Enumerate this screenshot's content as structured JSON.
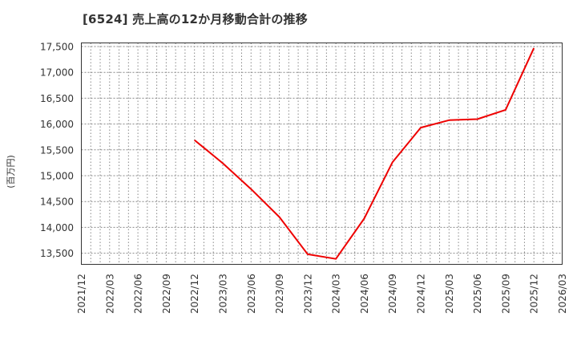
{
  "header": {
    "title": "[6524]  売上高の12か月移動合計の推移"
  },
  "axes": {
    "ylabel": "(百万円)"
  },
  "colors": {
    "line": "#ee0000",
    "grid": "#888888",
    "axis": "#333333",
    "background": "#ffffff"
  },
  "chart_data": {
    "type": "line",
    "title": "[6524]  売上高の12か月移動合計の推移",
    "xlabel": "",
    "ylabel": "(百万円)",
    "ylim": [
      13300,
      17580
    ],
    "grid": true,
    "legend": null,
    "y_ticks": [
      "13,500",
      "14,000",
      "14,500",
      "15,000",
      "15,500",
      "16,000",
      "16,500",
      "17,000",
      "17,500"
    ],
    "y_tick_values": [
      13500,
      14000,
      14500,
      15000,
      15500,
      16000,
      16500,
      17000,
      17500
    ],
    "x_ticks": [
      "2021/12",
      "2022/03",
      "2022/06",
      "2022/09",
      "2022/12",
      "2023/03",
      "2023/06",
      "2023/09",
      "2023/12",
      "2024/03",
      "2024/06",
      "2024/09",
      "2024/12",
      "2025/03",
      "2025/06",
      "2025/09",
      "2025/12",
      "2026/03"
    ],
    "series": [
      {
        "name": "売上高の12か月移動合計",
        "x": [
          "2022/12",
          "2023/03",
          "2023/06",
          "2023/09",
          "2023/12",
          "2024/03",
          "2024/06",
          "2024/09",
          "2024/12",
          "2025/03",
          "2025/06",
          "2025/09",
          "2025/12"
        ],
        "values": [
          15690,
          15240,
          14740,
          14200,
          13480,
          13390,
          14170,
          15260,
          15930,
          16075,
          16095,
          16275,
          17470
        ]
      }
    ]
  }
}
